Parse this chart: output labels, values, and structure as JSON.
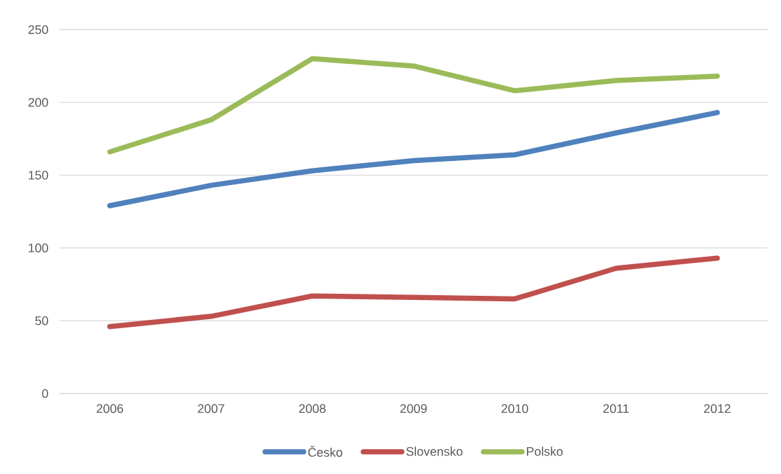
{
  "chart_data": {
    "type": "line",
    "categories": [
      "2006",
      "2007",
      "2008",
      "2009",
      "2010",
      "2011",
      "2012"
    ],
    "series": [
      {
        "name": "Česko",
        "color": "#4f81bd",
        "values": [
          129,
          143,
          153,
          160,
          164,
          179,
          193
        ]
      },
      {
        "name": "Slovensko",
        "color": "#c0504d",
        "values": [
          46,
          53,
          67,
          66,
          65,
          86,
          93
        ]
      },
      {
        "name": "Polsko",
        "color": "#9bbb59",
        "values": [
          166,
          188,
          230,
          225,
          208,
          215,
          218
        ]
      }
    ],
    "ylim": [
      0,
      250
    ],
    "yticks": [
      0,
      50,
      100,
      150,
      200,
      250
    ],
    "grid": "y",
    "legend": "bottom",
    "marker": "none",
    "line_style": "solid"
  }
}
